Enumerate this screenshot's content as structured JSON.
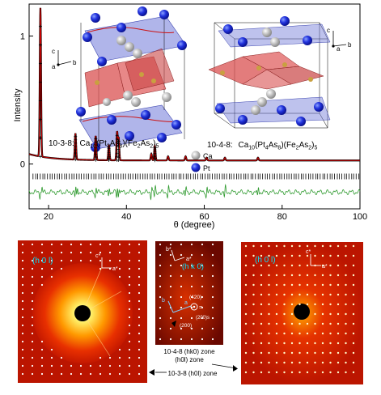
{
  "chart_data": {
    "type": "line",
    "xlabel": "θ (degree)",
    "ylabel": "Intensity",
    "xlim": [
      15,
      100
    ],
    "ylim": [
      -0.35,
      1.25
    ],
    "xticks": [
      20,
      40,
      60,
      80,
      100
    ],
    "yticks": [
      0,
      1
    ],
    "series": [
      {
        "name": "observed",
        "color": "#000000",
        "x": [
          17.9,
          18.2,
          26.9,
          27.3,
          32.1,
          35.5,
          37.6,
          38.0,
          46.4,
          47.3,
          50.7,
          55.2,
          60.6,
          65.3,
          73.8
        ],
        "y": [
          1.22,
          0.02,
          0.24,
          0.03,
          0.22,
          0.15,
          0.25,
          0.2,
          0.08,
          0.14,
          0.06,
          0.06,
          0.05,
          0.05,
          0.05
        ]
      },
      {
        "name": "calculated",
        "color": "#d00000"
      },
      {
        "name": "difference",
        "color": "#2e9a2e"
      }
    ],
    "reflection_markers": "black tick marks below the pattern",
    "annotations": {
      "left_structure_code": "10-3-8:",
      "left_structure_formula": [
        {
          "t": "Ca"
        },
        {
          "t": "10",
          "sub": true
        },
        {
          "t": "(Pt"
        },
        {
          "t": "3",
          "sub": true
        },
        {
          "t": "As"
        },
        {
          "t": "8",
          "sub": true
        },
        {
          "t": ")(Fe"
        },
        {
          "t": "2",
          "sub": true
        },
        {
          "t": "As"
        },
        {
          "t": "2",
          "sub": true
        },
        {
          "t": ")"
        },
        {
          "t": "5",
          "sub": true
        }
      ],
      "right_structure_code": "10-4-8:",
      "right_structure_formula": [
        {
          "t": "Ca"
        },
        {
          "t": "10",
          "sub": true
        },
        {
          "t": "(Pt"
        },
        {
          "t": "4",
          "sub": true
        },
        {
          "t": "As"
        },
        {
          "t": "8",
          "sub": true
        },
        {
          "t": ")(Fe"
        },
        {
          "t": "2",
          "sub": true
        },
        {
          "t": "As"
        },
        {
          "t": "2",
          "sub": true
        },
        {
          "t": ")"
        },
        {
          "t": "5",
          "sub": true
        }
      ],
      "legend_ca": "Ca",
      "legend_pt": "Pt",
      "axes_left": {
        "c": "c",
        "a": "a",
        "b": "b"
      },
      "axes_right": {
        "c": "c",
        "a": "a",
        "b": "b"
      }
    }
  },
  "diffraction_panels": {
    "left": {
      "label": "(h 0 l)",
      "axis_c": "c*",
      "axis_a": "a*"
    },
    "middle": {
      "label": "(h k 0)",
      "axis_b": "b*",
      "axis_a": "a*",
      "axis_b_inner": "b",
      "axis_a_inner": "a",
      "spot_420": "(420)",
      "spot_200s": "(200)s",
      "spot_200": "(200)",
      "equals": "="
    },
    "right": {
      "label": "(h 0 l)",
      "axis_c": "c*",
      "axis_a": "a*"
    },
    "zone_label_1": "10-4-8 (hk0) zone",
    "zone_label_2": "(h0l) zone",
    "zone_label_3": "10-3-8 (h0l) zone"
  },
  "colors": {
    "observed": "#000000",
    "calculated": "#d00000",
    "difference": "#2e9a2e",
    "pt_atom": "#1f2fd6",
    "ca_atom": "#c8c8c8",
    "fe_tetra": "#d95050",
    "pt_plane": "#6f78d8",
    "panel_text": "#00e5ff"
  }
}
